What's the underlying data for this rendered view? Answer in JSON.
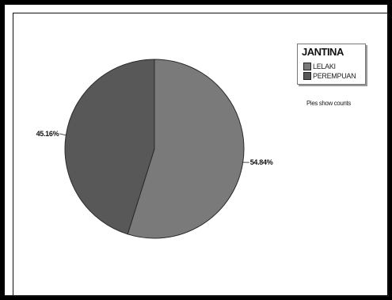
{
  "chart_data": {
    "type": "pie",
    "legend_title": "JANTINA",
    "legend_position": "top-right",
    "slices": [
      {
        "label": "LELAKI",
        "value": 54.84,
        "display": "54.84%",
        "color": "#7a7a7a"
      },
      {
        "label": "PEREMPUAN",
        "value": 45.16,
        "display": "45.16%",
        "color": "#585858"
      }
    ],
    "footnote": "Pies show counts"
  }
}
